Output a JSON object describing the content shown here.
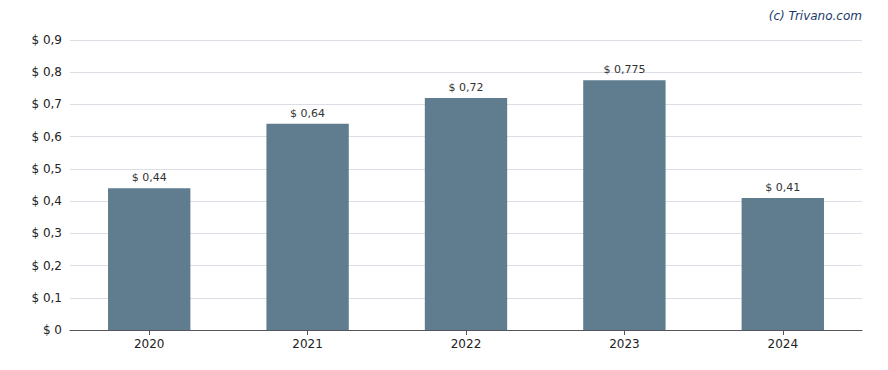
{
  "chart_data": {
    "type": "bar",
    "categories": [
      "2020",
      "2021",
      "2022",
      "2023",
      "2024"
    ],
    "values": [
      0.44,
      0.64,
      0.72,
      0.775,
      0.41
    ],
    "value_labels": [
      "$ 0,44",
      "$ 0,64",
      "$ 0,72",
      "$ 0,775",
      "$ 0,41"
    ],
    "data_labels": true,
    "color": "#5f7d8e",
    "ylim": [
      0,
      0.9
    ],
    "yticks": [
      {
        "value": 0.0,
        "label": "$ 0"
      },
      {
        "value": 0.1,
        "label": "$ 0,1"
      },
      {
        "value": 0.2,
        "label": "$ 0,2"
      },
      {
        "value": 0.3,
        "label": "$ 0,3"
      },
      {
        "value": 0.4,
        "label": "$ 0,4"
      },
      {
        "value": 0.5,
        "label": "$ 0,5"
      },
      {
        "value": 0.6,
        "label": "$ 0,6"
      },
      {
        "value": 0.7,
        "label": "$ 0,7"
      },
      {
        "value": 0.8,
        "label": "$ 0,8"
      },
      {
        "value": 0.9,
        "label": "$ 0,9"
      }
    ],
    "grid": true,
    "annotations": [
      {
        "text": "(c) Trivano.com",
        "color": "#1a3a6b"
      }
    ]
  }
}
